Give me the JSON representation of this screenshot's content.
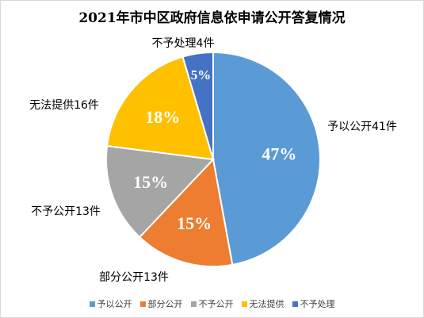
{
  "chart_data": {
    "type": "pie",
    "title": "2021年市中区政府信息依申请公开答复情况",
    "categories": [
      "予以公开",
      "部分公开",
      "不予公开",
      "无法提供",
      "不予处理"
    ],
    "values": [
      41,
      13,
      13,
      16,
      4
    ],
    "percent_labels": [
      "47%",
      "15%",
      "15%",
      "18%",
      "5%"
    ],
    "outer_labels": [
      "予以公开41件",
      "部分公开13件",
      "不予公开13件",
      "无法提供16件",
      "不予处理4件"
    ],
    "colors": [
      "#5b9bd5",
      "#ed7d31",
      "#a5a5a5",
      "#ffc000",
      "#4472c4"
    ],
    "legend_position": "bottom"
  }
}
